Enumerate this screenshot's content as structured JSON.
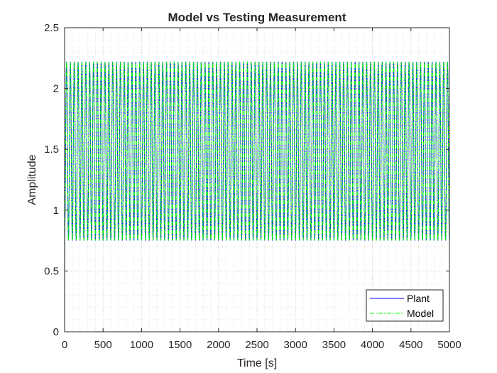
{
  "chart_data": {
    "type": "line",
    "title": "Model vs Testing Measurement",
    "xlabel": "Time [s]",
    "ylabel": "Amplitude",
    "xlim": [
      0,
      5000
    ],
    "ylim": [
      0,
      2.5
    ],
    "xticks": [
      "0",
      "500",
      "1000",
      "1500",
      "2000",
      "2500",
      "3000",
      "3500",
      "4000",
      "4500",
      "5000"
    ],
    "yticks": [
      "0",
      "0.5",
      "1",
      "1.5",
      "2",
      "2.5"
    ],
    "grid": true,
    "minor_grid": true,
    "legend_position": "bottom-right",
    "signal": {
      "initial_value": 0,
      "min": 0.75,
      "max": 2.22,
      "cycles": 100,
      "duration": 5000
    },
    "series": [
      {
        "name": "Plant",
        "color": "#0000ff",
        "style": "solid"
      },
      {
        "name": "Model",
        "color": "#00ff00",
        "style": "dashdot"
      }
    ]
  }
}
